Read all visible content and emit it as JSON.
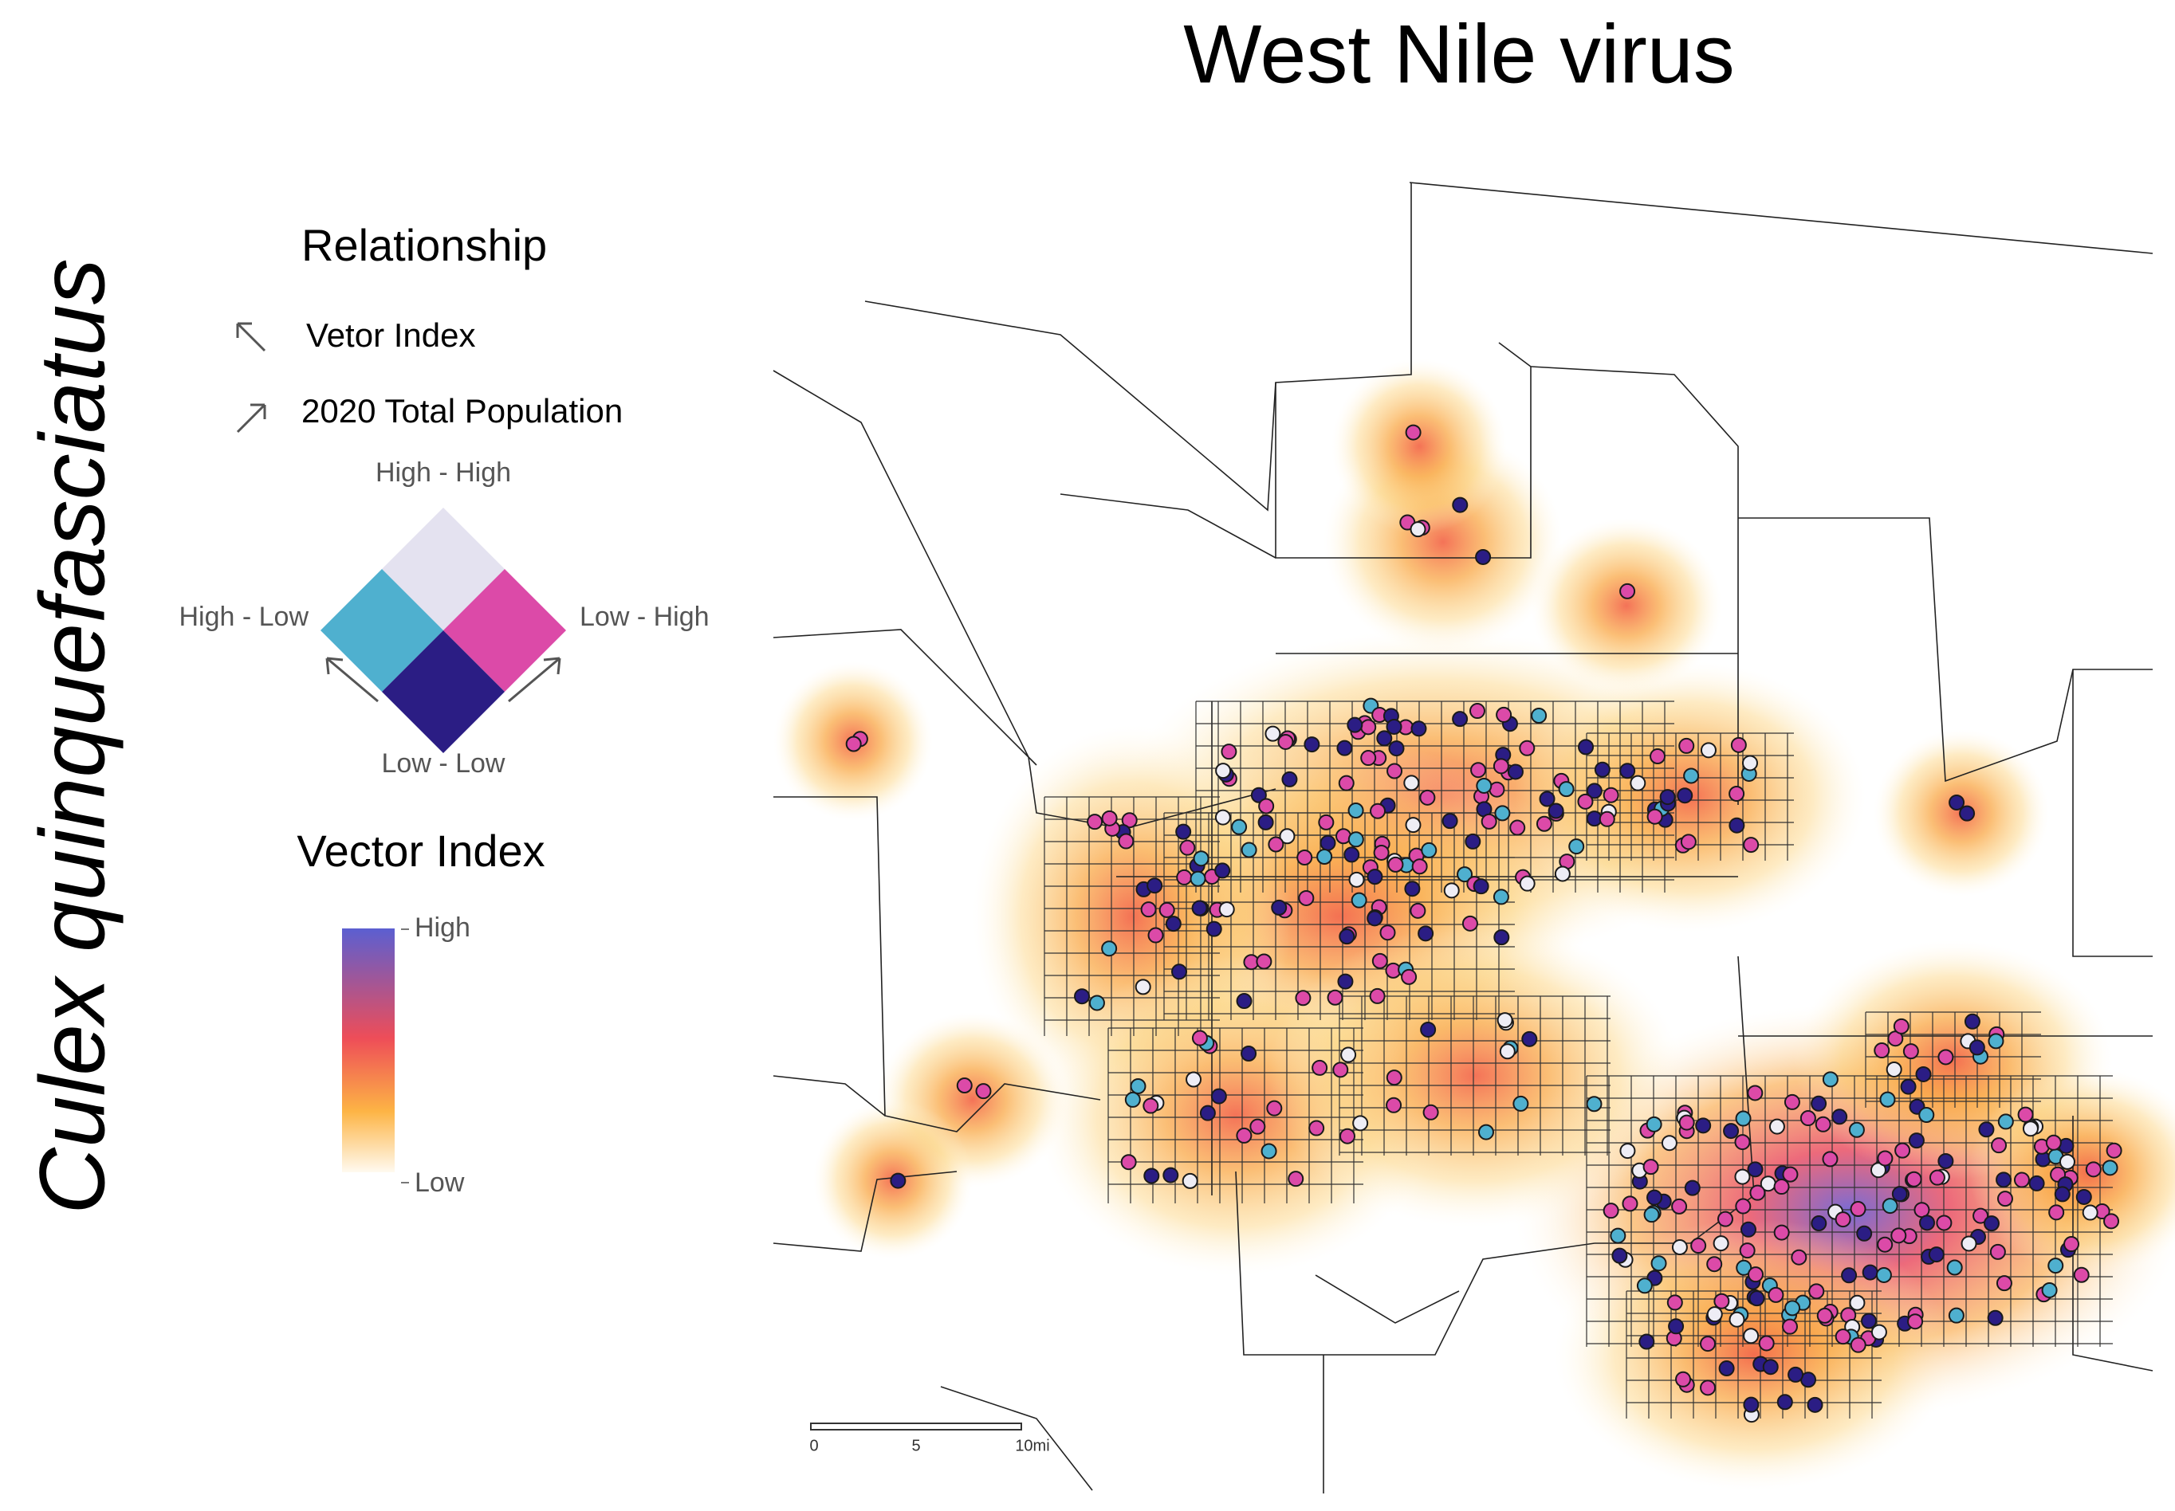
{
  "title": "West Nile virus",
  "species": "Culex quinquefasciatus",
  "legend": {
    "relationship_title": "Relationship",
    "arrow_labels": [
      "Vetor Index",
      "2020 Total Population"
    ],
    "quadrants": {
      "top": "High - High",
      "left": "High - Low",
      "right": "Low - High",
      "bottom": "Low - Low"
    },
    "vector_title": "Vector Index",
    "vector_high": "High",
    "vector_low": "Low"
  },
  "scale_bar": {
    "labels": [
      "0",
      "5",
      "10mi"
    ]
  }
}
